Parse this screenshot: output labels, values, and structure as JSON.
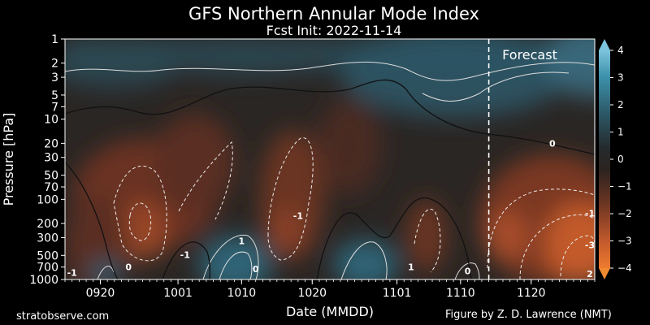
{
  "chart_data": {
    "type": "heatmap",
    "title": "GFS Northern Annular Mode Index",
    "subtitle": "Fcst Init: 2022-11-14",
    "xlabel": "Date (MMDD)",
    "ylabel": "Pressure [hPa]",
    "x_ticks": [
      "0920",
      "1001",
      "1010",
      "1020",
      "1101",
      "1110",
      "1120"
    ],
    "x_range": [
      "0915",
      "1129"
    ],
    "y_ticks": [
      1,
      2,
      3,
      5,
      7,
      10,
      20,
      30,
      50,
      70,
      100,
      200,
      300,
      500,
      700,
      1000
    ],
    "y_scale": "log",
    "y_range": [
      1000,
      1
    ],
    "forecast_start": "1114",
    "forecast_label": "Forecast",
    "colorbar": {
      "ticks": [
        4,
        3,
        2,
        1,
        0,
        -1,
        -2,
        -3,
        -4
      ],
      "tick_labels": [
        "4",
        "3",
        "2",
        "1",
        "0",
        "−1",
        "−2",
        "−3",
        "−4"
      ],
      "range": [
        -4,
        4
      ],
      "colors": {
        "positive": "#4fa8c6",
        "neutral": "#262626",
        "negative": "#e06a2c"
      }
    },
    "contour_labels": [
      {
        "text": "0",
        "date": "1123",
        "p": 20
      },
      {
        "text": "-1",
        "date": "1018",
        "p": 160
      },
      {
        "text": "-1",
        "date": "1129",
        "p": 150
      },
      {
        "text": "-1",
        "date": "1002",
        "p": 490
      },
      {
        "text": "-1",
        "date": "0916",
        "p": 820
      },
      {
        "text": "1",
        "date": "1010",
        "p": 330
      },
      {
        "text": "1",
        "date": "1103",
        "p": 700
      },
      {
        "text": "0",
        "date": "0924",
        "p": 700
      },
      {
        "text": "0",
        "date": "1012",
        "p": 740
      },
      {
        "text": "0",
        "date": "1111",
        "p": 780
      },
      {
        "text": "-3",
        "date": "1130",
        "p": 370
      },
      {
        "text": "2",
        "date": "1130",
        "p": 850
      }
    ],
    "annotations": [
      "stratobserve.com",
      "Figure by Z. D. Lawrence (NMT)"
    ]
  }
}
